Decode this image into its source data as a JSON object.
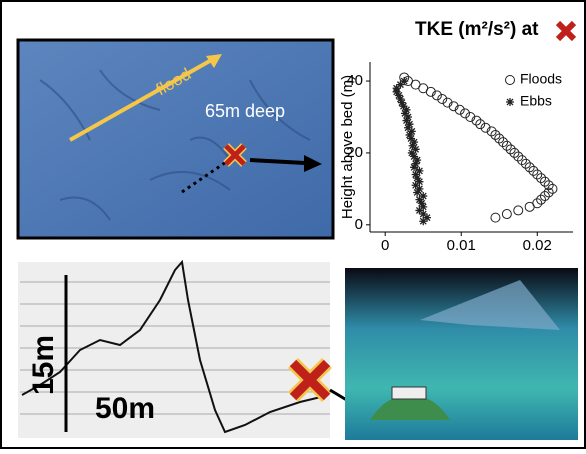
{
  "panels": {
    "map": {
      "flood_label": "flood",
      "depth_label": "65m deep"
    },
    "profile": {
      "height_label": "15m",
      "length_label": "50m"
    }
  },
  "chart_data": {
    "type": "scatter",
    "title": "TKE (m²/s²) at",
    "ylabel": "Height above bed (m)",
    "xlim": [
      -0.002,
      0.0247
    ],
    "ylim": [
      -2,
      45.3
    ],
    "xticks": [
      0,
      0.01,
      0.02
    ],
    "yticks": [
      0,
      20,
      40
    ],
    "legend": "upper right",
    "series": [
      {
        "name": "Floods",
        "marker": "circle",
        "color": "#222222",
        "x": [
          0.0145,
          0.016,
          0.0175,
          0.019,
          0.02,
          0.0205,
          0.021,
          0.0215,
          0.022,
          0.0215,
          0.021,
          0.0205,
          0.02,
          0.0195,
          0.019,
          0.0185,
          0.018,
          0.0175,
          0.017,
          0.0165,
          0.016,
          0.0155,
          0.015,
          0.0145,
          0.014,
          0.0132,
          0.0125,
          0.012,
          0.0112,
          0.0105,
          0.0098,
          0.009,
          0.0082,
          0.0075,
          0.0068,
          0.006,
          0.005,
          0.004,
          0.003,
          0.0025
        ],
        "values": [
          2,
          3,
          4,
          5,
          6,
          7,
          8,
          9,
          10,
          11,
          12,
          13,
          14,
          15,
          16,
          17,
          18,
          19,
          20,
          21,
          22,
          23,
          24,
          25,
          26,
          27,
          28,
          29,
          30,
          31,
          32,
          33,
          34,
          35,
          36,
          37,
          38,
          39,
          40,
          41
        ]
      },
      {
        "name": "Ebbs",
        "marker": "asterisk",
        "color": "#222222",
        "x": [
          0.005,
          0.0055,
          0.005,
          0.0045,
          0.005,
          0.0048,
          0.0045,
          0.005,
          0.0042,
          0.0045,
          0.004,
          0.0045,
          0.0042,
          0.004,
          0.0045,
          0.0038,
          0.004,
          0.0042,
          0.0038,
          0.0035,
          0.004,
          0.0036,
          0.0038,
          0.0034,
          0.0032,
          0.0035,
          0.003,
          0.0032,
          0.0028,
          0.003,
          0.0026,
          0.0028,
          0.0024,
          0.0022,
          0.002,
          0.0018,
          0.0015,
          0.0015,
          0.002,
          0.0025
        ],
        "values": [
          1,
          2,
          3,
          4,
          5,
          6,
          7,
          8,
          9,
          10,
          11,
          12,
          13,
          14,
          15,
          16,
          17,
          18,
          19,
          20,
          21,
          22,
          23,
          24,
          25,
          26,
          27,
          28,
          29,
          30,
          31,
          32,
          33,
          34,
          35,
          36,
          37,
          38,
          39,
          40
        ]
      }
    ]
  }
}
